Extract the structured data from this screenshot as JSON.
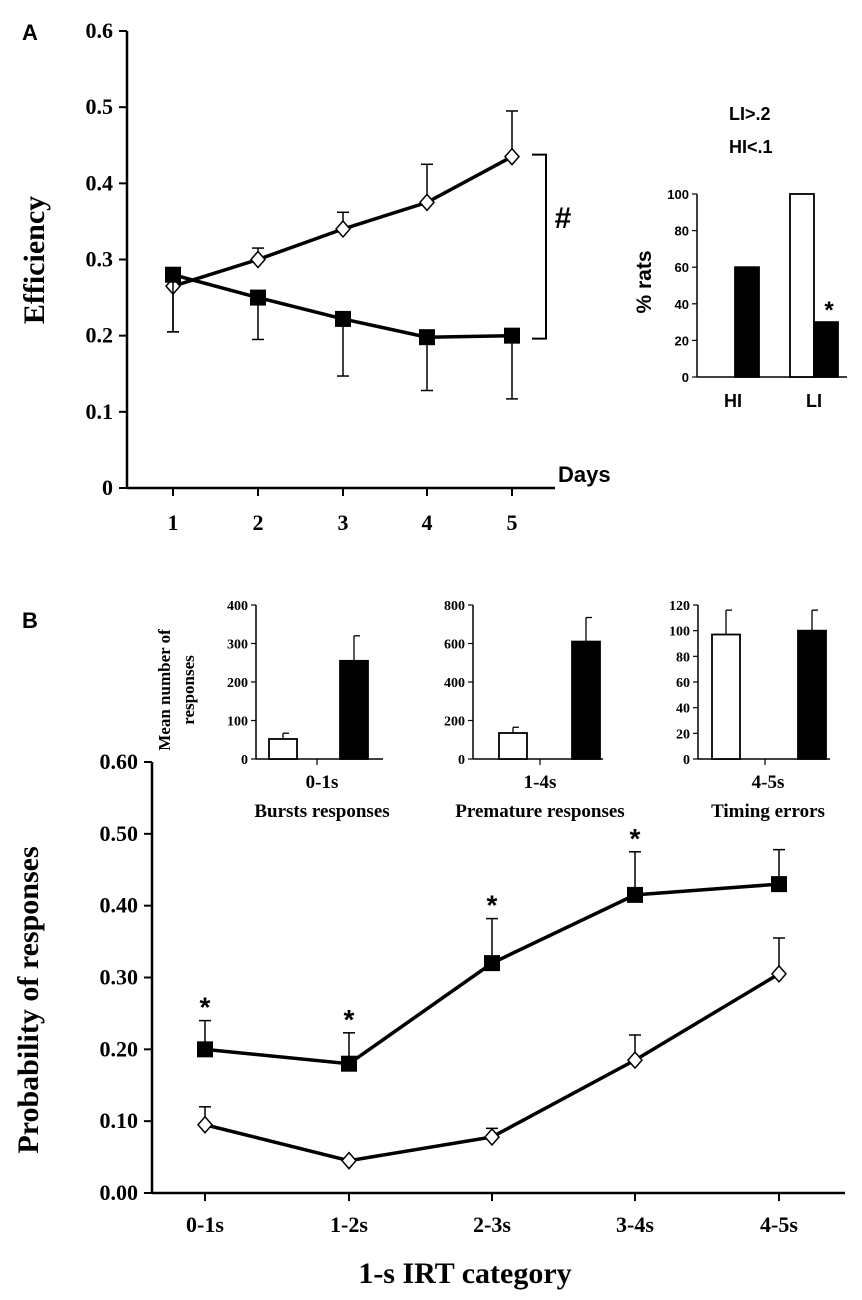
{
  "chart_data": [
    {
      "id": "A_main",
      "panel": "A",
      "type": "line",
      "title": "",
      "xlabel": "Days",
      "ylabel": "Efficiency",
      "x": [
        "1",
        "2",
        "3",
        "4",
        "5"
      ],
      "ylim": [
        0,
        0.6
      ],
      "yticks": [
        "0",
        "0.1",
        "0.2",
        "0.3",
        "0.4",
        "0.5",
        "0.6"
      ],
      "series": [
        {
          "name": "open-diamond",
          "marker": "diamond-open",
          "values": [
            0.265,
            0.3,
            0.34,
            0.375,
            0.435
          ],
          "errors": [
            0.06,
            0.015,
            0.022,
            0.05,
            0.06
          ],
          "error_dir": "mixed"
        },
        {
          "name": "filled-square",
          "marker": "square-filled",
          "values": [
            0.28,
            0.25,
            0.222,
            0.198,
            0.2
          ],
          "errors": [
            0.075,
            0.055,
            0.075,
            0.07,
            0.083
          ],
          "error_dir": "down"
        }
      ],
      "annotations": [
        {
          "text": "#",
          "note": "bracket between day-5 means"
        }
      ]
    },
    {
      "id": "A_inset",
      "panel": "A",
      "type": "bar",
      "ylabel": "% rats",
      "categories": [
        "HI",
        "LI"
      ],
      "ylim": [
        0,
        100
      ],
      "yticks": [
        "0",
        "20",
        "40",
        "60",
        "80",
        "100"
      ],
      "series": [
        {
          "name": "open",
          "color": "#ffffff",
          "values": [
            0,
            100
          ]
        },
        {
          "name": "filled",
          "color": "#000000",
          "values": [
            60,
            30
          ]
        }
      ],
      "legend_text": [
        "LI>.2",
        "HI<.1"
      ],
      "annotations": [
        {
          "text": "*",
          "note": "over LI filled bar"
        }
      ]
    },
    {
      "id": "B_inset_1",
      "panel": "B",
      "type": "bar",
      "ylabel": "Mean number of responses",
      "category": "0-1s",
      "caption": "Bursts responses",
      "ylim": [
        0,
        400
      ],
      "yticks": [
        "0",
        "100",
        "200",
        "300",
        "400"
      ],
      "series": [
        {
          "name": "open",
          "color": "#ffffff",
          "values": [
            52
          ],
          "errors": [
            15
          ]
        },
        {
          "name": "filled",
          "color": "#000000",
          "values": [
            255
          ],
          "errors": [
            65
          ]
        }
      ]
    },
    {
      "id": "B_inset_2",
      "panel": "B",
      "type": "bar",
      "category": "1-4s",
      "caption": "Premature responses",
      "ylim": [
        0,
        800
      ],
      "yticks": [
        "0",
        "200",
        "400",
        "600",
        "800"
      ],
      "series": [
        {
          "name": "open",
          "color": "#ffffff",
          "values": [
            135
          ],
          "errors": [
            30
          ]
        },
        {
          "name": "filled",
          "color": "#000000",
          "values": [
            610
          ],
          "errors": [
            125
          ]
        }
      ]
    },
    {
      "id": "B_inset_3",
      "panel": "B",
      "type": "bar",
      "category": "4-5s",
      "caption": "Timing errors",
      "ylim": [
        0,
        120
      ],
      "yticks": [
        "0",
        "20",
        "40",
        "60",
        "80",
        "100",
        "120"
      ],
      "series": [
        {
          "name": "open",
          "color": "#ffffff",
          "values": [
            97
          ],
          "errors": [
            19
          ]
        },
        {
          "name": "filled",
          "color": "#000000",
          "values": [
            100
          ],
          "errors": [
            16
          ]
        }
      ]
    },
    {
      "id": "B_main",
      "panel": "B",
      "type": "line",
      "xlabel": "1-s IRT  category",
      "ylabel": "Probability  of responses",
      "x": [
        "0-1s",
        "1-2s",
        "2-3s",
        "3-4s",
        "4-5s"
      ],
      "ylim": [
        0,
        0.6
      ],
      "yticks": [
        "0.00",
        "0.10",
        "0.20",
        "0.30",
        "0.40",
        "0.50",
        "0.60"
      ],
      "series": [
        {
          "name": "filled-square",
          "marker": "square-filled",
          "values": [
            0.2,
            0.18,
            0.32,
            0.415,
            0.43
          ],
          "errors": [
            0.04,
            0.043,
            0.062,
            0.06,
            0.048
          ],
          "error_dir": "up"
        },
        {
          "name": "open-diamond",
          "marker": "diamond-open",
          "values": [
            0.095,
            0.045,
            0.078,
            0.185,
            0.305
          ],
          "errors": [
            0.025,
            0.0,
            0.012,
            0.035,
            0.05
          ],
          "error_dir": "up"
        }
      ],
      "significance": [
        "*",
        "*",
        "*",
        "*",
        ""
      ]
    }
  ],
  "panel_labels": [
    "A",
    "B"
  ]
}
